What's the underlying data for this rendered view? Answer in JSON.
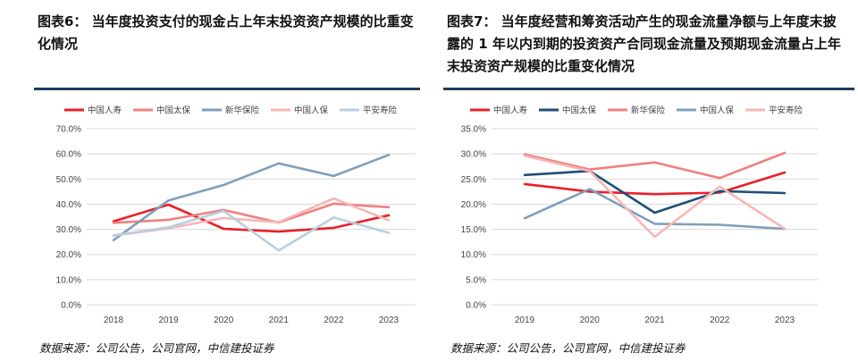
{
  "panels": [
    {
      "title": "图表6： 当年度投资支付的现金占上年末投资资产规模的比重变化情况",
      "source": "数据来源：公司公告，公司官网，中信建投证券"
    },
    {
      "title": "图表7： 当年度经营和筹资活动产生的现金流量净额与上年度末披露的 1 年以内到期的投资资产合同现金流量及预期现金流量占上年末投资资产规模的比重变化情况",
      "source": "数据来源：公司公告，公司官网，中信建投证券"
    }
  ],
  "chart_data": [
    {
      "type": "line",
      "categories": [
        "2018",
        "2019",
        "2020",
        "2021",
        "2022",
        "2023"
      ],
      "y_ticks": [
        "0.0%",
        "10.0%",
        "20.0%",
        "30.0%",
        "40.0%",
        "50.0%",
        "60.0%",
        "70.0%"
      ],
      "ylim": [
        0,
        70
      ],
      "grid": true,
      "legend_position": "top",
      "series": [
        {
          "name": "中国人寿",
          "color": "#e8202a",
          "values": [
            33.2,
            39.8,
            30.2,
            29.1,
            30.6,
            35.6
          ]
        },
        {
          "name": "中国太保",
          "color": "#f08080",
          "values": [
            32.6,
            33.8,
            37.7,
            32.7,
            40.2,
            38.8
          ]
        },
        {
          "name": "新华保险",
          "color": "#7f9fb8",
          "values": [
            25.7,
            41.5,
            47.6,
            56.2,
            51.2,
            59.6
          ]
        },
        {
          "name": "中国人保",
          "color": "#f7b6b6",
          "values": [
            27.5,
            30.4,
            34.5,
            32.8,
            42.3,
            33.6
          ]
        },
        {
          "name": "平安寿险",
          "color": "#b9cfdd",
          "values": [
            27.6,
            30.8,
            37.3,
            21.6,
            34.7,
            28.6
          ]
        }
      ]
    },
    {
      "type": "line",
      "categories": [
        "2019",
        "2020",
        "2021",
        "2022",
        "2023"
      ],
      "y_ticks": [
        "0.0%",
        "5.0%",
        "10.0%",
        "15.0%",
        "20.0%",
        "25.0%",
        "30.0%",
        "35.0%"
      ],
      "ylim": [
        0,
        35
      ],
      "grid": true,
      "legend_position": "top",
      "series": [
        {
          "name": "中国人寿",
          "color": "#e8202a",
          "values": [
            24.0,
            22.5,
            22.0,
            22.3,
            26.3
          ]
        },
        {
          "name": "中国太保",
          "color": "#1f4e79",
          "values": [
            25.8,
            26.6,
            18.3,
            22.6,
            22.2
          ]
        },
        {
          "name": "新华保险",
          "color": "#f08080",
          "values": [
            29.9,
            26.9,
            28.3,
            25.2,
            30.2
          ]
        },
        {
          "name": "中国人保",
          "color": "#7f9fb8",
          "values": [
            17.2,
            23.0,
            16.1,
            15.9,
            15.1
          ]
        },
        {
          "name": "平安寿险",
          "color": "#f7b6b6",
          "values": [
            29.6,
            26.6,
            13.5,
            23.5,
            15.1
          ]
        }
      ]
    }
  ]
}
